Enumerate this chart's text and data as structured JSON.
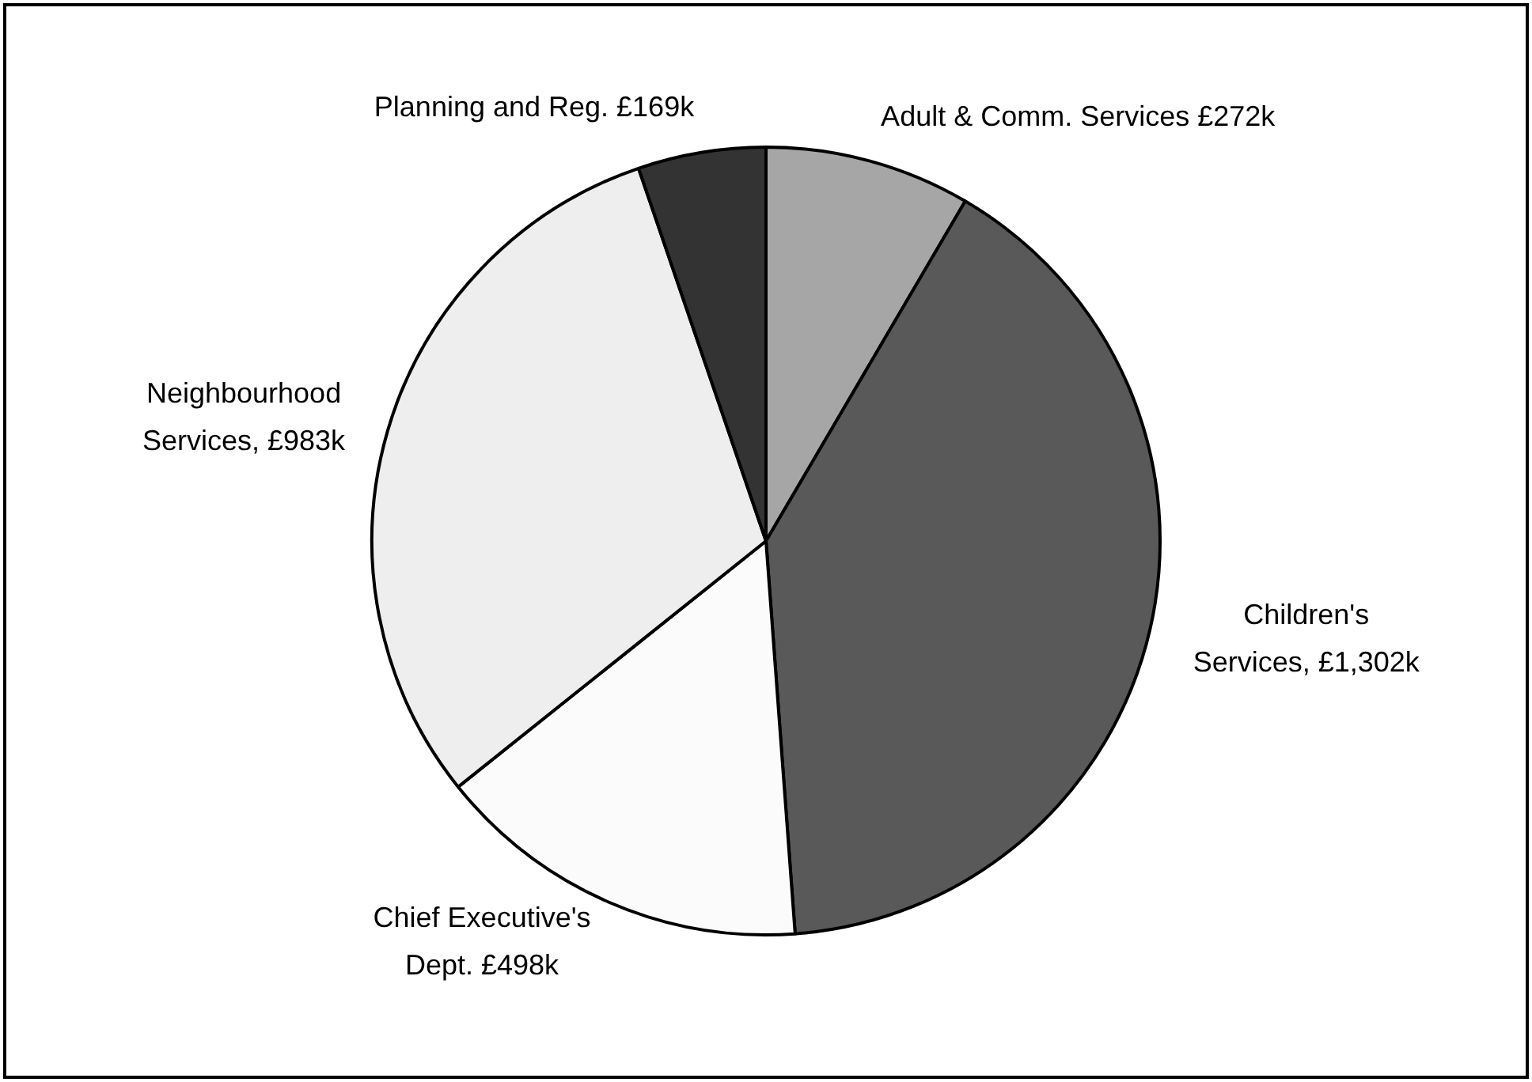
{
  "chart_data": {
    "type": "pie",
    "categories": [
      "Adult & Comm. Services £272k",
      "Children's Services, £1,302k",
      "Chief Executive's Dept. £498k",
      "Neighbourhood Services, £983k",
      "Planning and Reg. £169k"
    ],
    "values": [
      272,
      1302,
      498,
      983,
      169
    ],
    "colors": [
      "#a6a6a6",
      "#595959",
      "#fbfbfb",
      "#eeeeee",
      "#333333"
    ],
    "legend": false
  }
}
